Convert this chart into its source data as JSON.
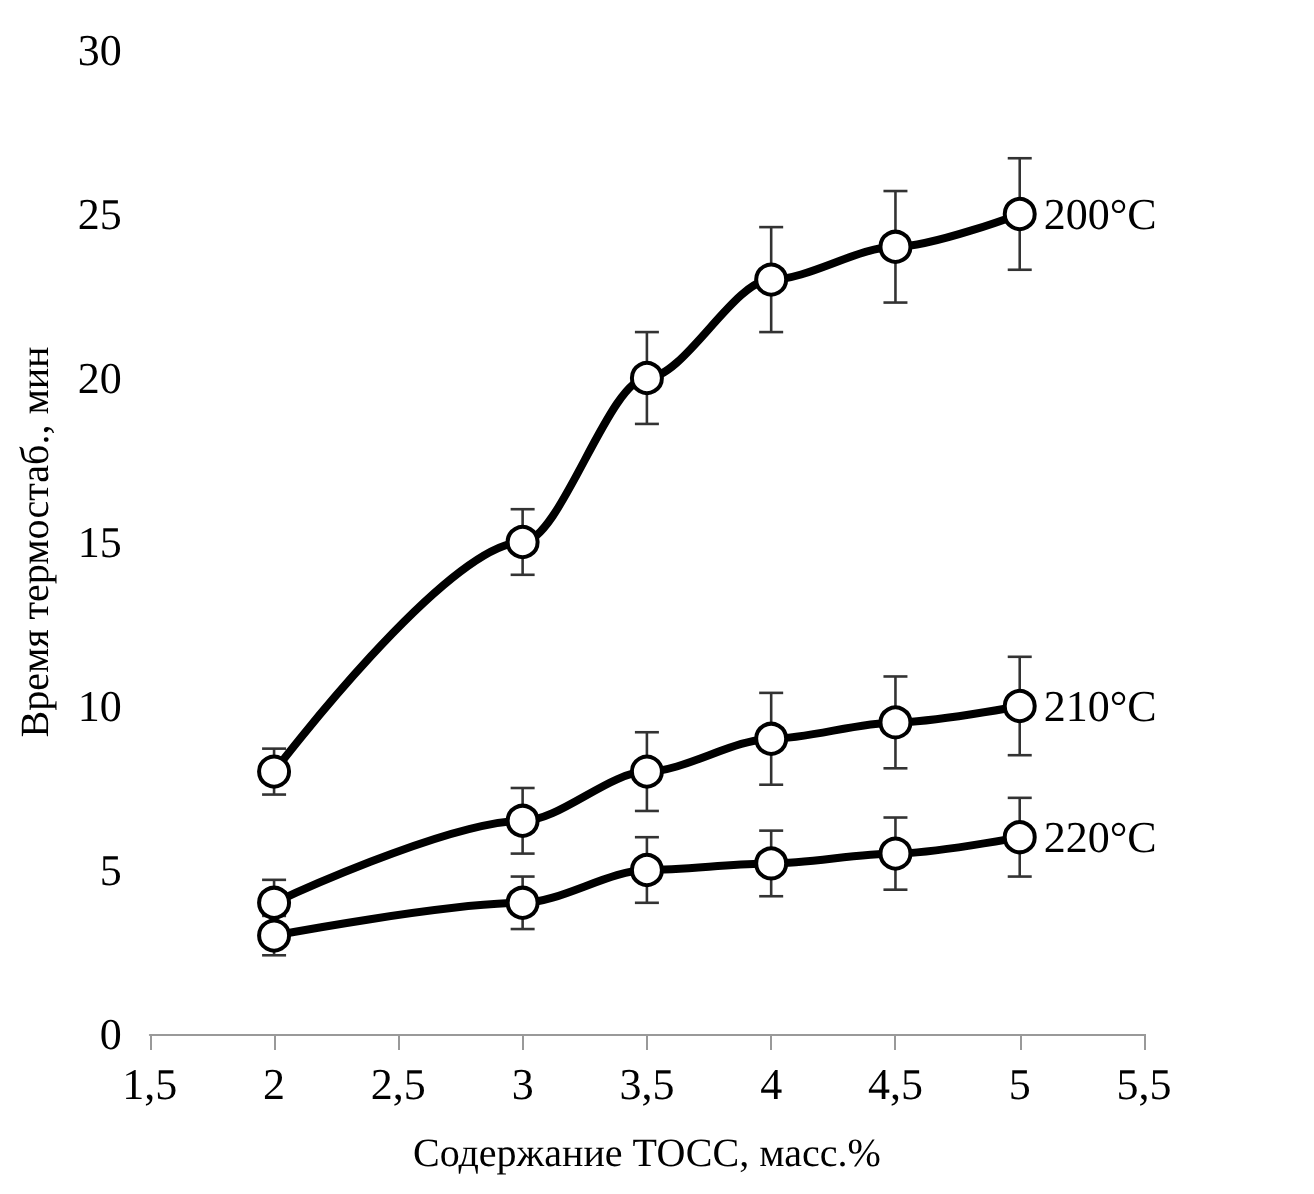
{
  "chart_data": {
    "type": "line",
    "xlabel": "Содержание ТОСС, масс.%",
    "ylabel": "Время термостаб., мин",
    "x": [
      2,
      3,
      3.5,
      4,
      4.5,
      5
    ],
    "series": [
      {
        "name": "200°C",
        "color": "#000000",
        "values": [
          8,
          15,
          20,
          23,
          24,
          25
        ],
        "errors": [
          0.7,
          1,
          1.4,
          1.6,
          1.7,
          1.7
        ]
      },
      {
        "name": "210°C",
        "color": "#000000",
        "values": [
          4,
          6.5,
          8,
          9,
          9.5,
          10
        ],
        "errors": [
          0.7,
          1,
          1.2,
          1.4,
          1.4,
          1.5
        ]
      },
      {
        "name": "220°C",
        "color": "#000000",
        "values": [
          3,
          4,
          5,
          5.2,
          5.5,
          6
        ],
        "errors": [
          0.6,
          0.8,
          1,
          1,
          1.1,
          1.2
        ]
      }
    ],
    "xlim": [
      1.5,
      5.5
    ],
    "xticks": [
      {
        "value": 1.5,
        "label": "1,5"
      },
      2,
      {
        "value": 2.5,
        "label": "2,5"
      },
      3,
      {
        "value": 3.5,
        "label": "3,5"
      },
      4,
      {
        "value": 4.5,
        "label": "4,5"
      },
      5,
      {
        "value": 5.5,
        "label": "5,5"
      }
    ],
    "ylim": [
      0,
      30
    ],
    "yticks": [
      0,
      5,
      10,
      15,
      20,
      25,
      30
    ],
    "grid": false,
    "legend": false,
    "marker": "circle",
    "line_style": "solid"
  }
}
